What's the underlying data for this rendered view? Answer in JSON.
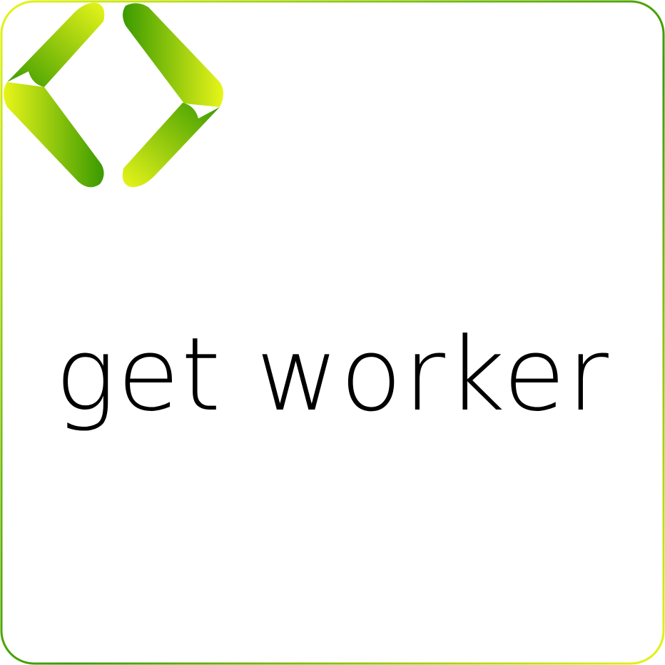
{
  "logo": {
    "wordmark": "get worker",
    "icon": "code-brackets-icon",
    "colors": {
      "lime": "#e8f51a",
      "green": "#3a9a00",
      "text": "#000000",
      "background": "#ffffff"
    }
  }
}
